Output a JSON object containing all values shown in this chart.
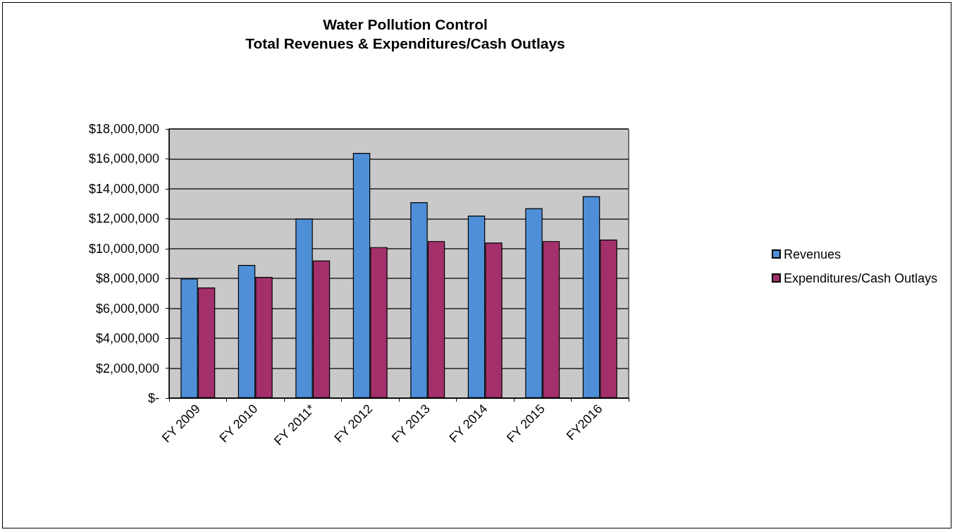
{
  "chart_data": {
    "type": "bar",
    "title": "Water Pollution Control\nTotal Revenues & Expenditures/Cash Outlays",
    "categories": [
      "FY 2009",
      "FY 2010",
      "FY 2011*",
      "FY 2012",
      "FY 2013",
      "FY 2014",
      "FY 2015",
      "FY2016"
    ],
    "series": [
      {
        "name": "Revenues",
        "color": "#4f8fd8",
        "values": [
          8000000,
          8900000,
          12000000,
          16400000,
          13100000,
          12200000,
          12700000,
          13500000
        ]
      },
      {
        "name": "Expenditures/Cash Outlays",
        "color": "#a3306b",
        "values": [
          7400000,
          8100000,
          9200000,
          10100000,
          10500000,
          10400000,
          10500000,
          10600000
        ]
      }
    ],
    "ylim": [
      0,
      18000000
    ],
    "yticks": [
      {
        "value": 0,
        "label": "$-"
      },
      {
        "value": 2000000,
        "label": "$2,000,000"
      },
      {
        "value": 4000000,
        "label": "$4,000,000"
      },
      {
        "value": 6000000,
        "label": "$6,000,000"
      },
      {
        "value": 8000000,
        "label": "$8,000,000"
      },
      {
        "value": 10000000,
        "label": "$10,000,000"
      },
      {
        "value": 12000000,
        "label": "$12,000,000"
      },
      {
        "value": 14000000,
        "label": "$14,000,000"
      },
      {
        "value": 16000000,
        "label": "$16,000,000"
      },
      {
        "value": 18000000,
        "label": "$18,000,000"
      }
    ],
    "grid": "y",
    "legend": "right"
  }
}
